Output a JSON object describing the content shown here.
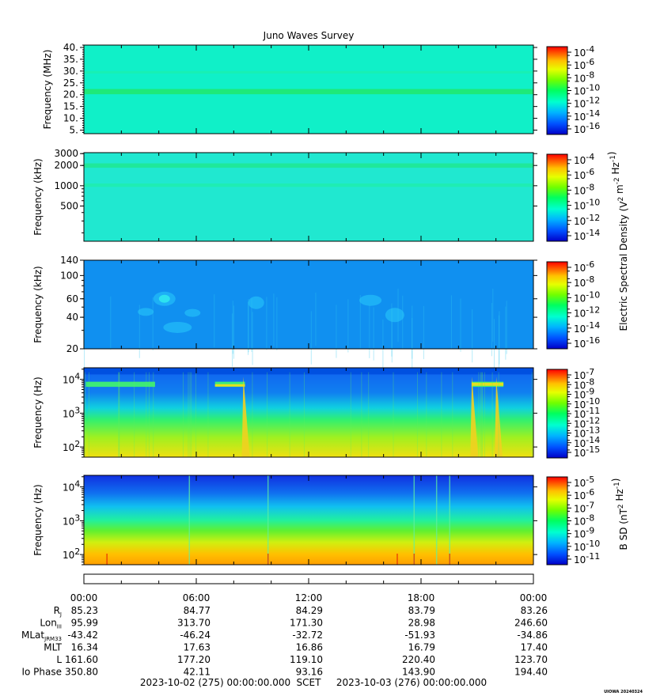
{
  "title": "Juno Waves Survey",
  "footer_stamp": "UIOWA 20240324",
  "colors": {
    "colormap": [
      "#0000c8",
      "#0050ff",
      "#00b4ff",
      "#00ffd0",
      "#00ff60",
      "#70ff00",
      "#e6ff00",
      "#ffc000",
      "#ff6000",
      "#ff0000"
    ],
    "panel_bg_1": "#10f0c8",
    "panel_bg_2": "#20e8d0",
    "panel_bg_3": "#1090f0"
  },
  "chart_data": [
    {
      "type": "heatmap",
      "name": "panel-1",
      "ylabel": "Frequency (MHz)",
      "yscale": "linear",
      "ylim": [
        3.5,
        41
      ],
      "yticks": [
        5,
        10,
        15,
        20,
        25,
        30,
        35,
        40
      ],
      "ytick_labels": [
        "5.",
        "10.",
        "15.",
        "20.",
        "25.",
        "30.",
        "35.",
        "40."
      ],
      "colorbar": {
        "label": "",
        "ticks": [
          {
            "base": "10",
            "exp": "-4"
          },
          {
            "base": "10",
            "exp": "-6"
          },
          {
            "base": "10",
            "exp": "-8"
          },
          {
            "base": "10",
            "exp": "-10"
          },
          {
            "base": "10",
            "exp": "-12"
          },
          {
            "base": "10",
            "exp": "-14"
          },
          {
            "base": "10",
            "exp": "-16"
          }
        ]
      }
    },
    {
      "type": "heatmap",
      "name": "panel-2",
      "ylabel": "Frequency (kHz)",
      "yscale": "log",
      "ylim": [
        150,
        3100
      ],
      "yticks": [
        500,
        1000,
        2000,
        3000
      ],
      "ytick_labels": [
        "500",
        "1000",
        "2000",
        "3000"
      ],
      "colorbar": {
        "label": "",
        "ticks": [
          {
            "base": "10",
            "exp": "-4"
          },
          {
            "base": "10",
            "exp": "-6"
          },
          {
            "base": "10",
            "exp": "-8"
          },
          {
            "base": "10",
            "exp": "-10"
          },
          {
            "base": "10",
            "exp": "-12"
          },
          {
            "base": "10",
            "exp": "-14"
          }
        ]
      }
    },
    {
      "type": "heatmap",
      "name": "panel-3",
      "ylabel": "Frequency (kHz)",
      "yscale": "log",
      "ylim": [
        20,
        140
      ],
      "yticks": [
        20,
        40,
        60,
        100,
        140
      ],
      "ytick_labels": [
        "20",
        "40",
        "60",
        "100",
        "140"
      ],
      "colorbar": {
        "label": "",
        "ticks": [
          {
            "base": "10",
            "exp": "-6"
          },
          {
            "base": "10",
            "exp": "-8"
          },
          {
            "base": "10",
            "exp": "-10"
          },
          {
            "base": "10",
            "exp": "-12"
          },
          {
            "base": "10",
            "exp": "-14"
          },
          {
            "base": "10",
            "exp": "-16"
          }
        ]
      }
    },
    {
      "type": "heatmap",
      "name": "panel-4",
      "ylabel": "Frequency (Hz)",
      "yscale": "log",
      "ylim": [
        50,
        22000
      ],
      "yticks": [
        100,
        1000,
        10000
      ],
      "ytick_labels": [
        {
          "base": "10",
          "exp": "2"
        },
        {
          "base": "10",
          "exp": "3"
        },
        {
          "base": "10",
          "exp": "4"
        }
      ],
      "colorbar": {
        "label": "",
        "ticks": [
          {
            "base": "10",
            "exp": "-7"
          },
          {
            "base": "10",
            "exp": "-8"
          },
          {
            "base": "10",
            "exp": "-9"
          },
          {
            "base": "10",
            "exp": "-10"
          },
          {
            "base": "10",
            "exp": "-11"
          },
          {
            "base": "10",
            "exp": "-12"
          },
          {
            "base": "10",
            "exp": "-13"
          },
          {
            "base": "10",
            "exp": "-14"
          },
          {
            "base": "10",
            "exp": "-15"
          }
        ]
      }
    },
    {
      "type": "heatmap",
      "name": "panel-5",
      "ylabel": "Frequency (Hz)",
      "yscale": "log",
      "ylim": [
        50,
        22000
      ],
      "yticks": [
        100,
        1000,
        10000
      ],
      "ytick_labels": [
        {
          "base": "10",
          "exp": "2"
        },
        {
          "base": "10",
          "exp": "3"
        },
        {
          "base": "10",
          "exp": "4"
        }
      ],
      "colorbar": {
        "label": "B SD (nT<sup>2</sup> Hz<sup>-1</sup>)",
        "label_parts": [
          {
            "t": "B SD (nT"
          },
          {
            "t": "2",
            "sup": true
          },
          {
            "t": " Hz"
          },
          {
            "t": "-1",
            "sup": true
          },
          {
            "t": ")"
          }
        ],
        "ticks": [
          {
            "base": "10",
            "exp": "-5"
          },
          {
            "base": "10",
            "exp": "-6"
          },
          {
            "base": "10",
            "exp": "-7"
          },
          {
            "base": "10",
            "exp": "-8"
          },
          {
            "base": "10",
            "exp": "-9"
          },
          {
            "base": "10",
            "exp": "-10"
          },
          {
            "base": "10",
            "exp": "-11"
          }
        ]
      }
    }
  ],
  "shared_colorbar_label_parts": [
    {
      "t": "Electric Spectral Density (V"
    },
    {
      "t": "2",
      "sup": true
    },
    {
      "t": " m"
    },
    {
      "t": "-2",
      "sup": true
    },
    {
      "t": " Hz"
    },
    {
      "t": "-1",
      "sup": true
    },
    {
      "t": ")"
    }
  ],
  "time_axis": {
    "tick_labels": [
      "00:00",
      "06:00",
      "12:00",
      "18:00",
      "00:00"
    ],
    "major_hours": [
      0,
      6,
      12,
      18,
      24
    ],
    "range_hours": [
      0,
      24
    ]
  },
  "ephemeris": [
    {
      "label_parts": [
        {
          "t": "R"
        },
        {
          "t": "J",
          "sub": true
        }
      ],
      "values": [
        "85.23",
        "84.77",
        "84.29",
        "83.79",
        "83.26"
      ]
    },
    {
      "label_parts": [
        {
          "t": "Lon"
        },
        {
          "t": "III",
          "sub": true
        }
      ],
      "values": [
        "95.99",
        "313.70",
        "171.30",
        "28.98",
        "246.60"
      ]
    },
    {
      "label_parts": [
        {
          "t": "MLat"
        },
        {
          "t": "JRM33",
          "sub": true
        }
      ],
      "values": [
        "-43.42",
        "-46.24",
        "-32.72",
        "-51.93",
        "-34.86"
      ]
    },
    {
      "label_parts": [
        {
          "t": "MLT"
        }
      ],
      "values": [
        "16.34",
        "17.63",
        "16.86",
        "16.79",
        "17.40"
      ]
    },
    {
      "label_parts": [
        {
          "t": "L"
        }
      ],
      "values": [
        "161.60",
        "177.20",
        "119.10",
        "220.40",
        "123.70"
      ]
    },
    {
      "label_parts": [
        {
          "t": "Io Phase"
        }
      ],
      "values": [
        "350.80",
        "42.11",
        "93.16",
        "143.90",
        "194.40"
      ]
    }
  ],
  "scet": {
    "start": "2023-10-02 (275) 00:00:00.000",
    "label": "SCET",
    "end": "2023-10-03 (276) 00:00:00.000"
  }
}
